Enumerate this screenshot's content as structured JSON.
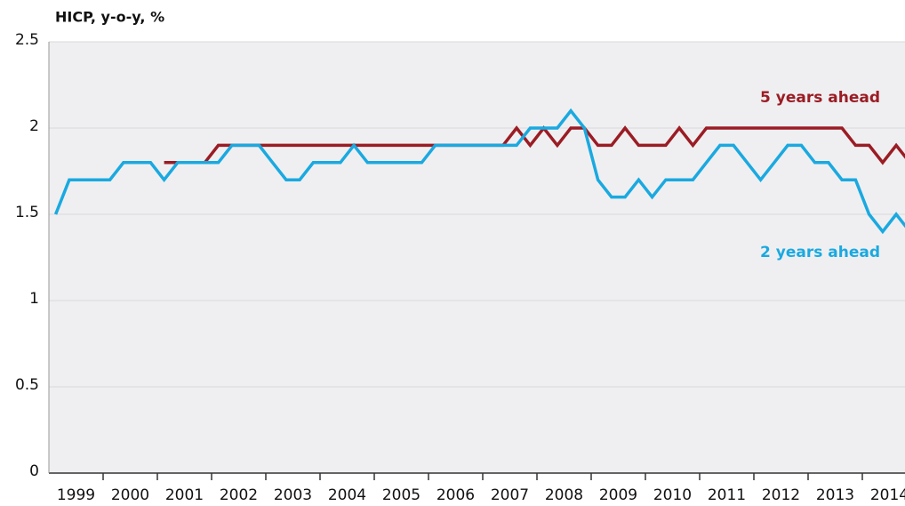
{
  "chart_data": {
    "type": "line",
    "title": "HICP, y-o-y, %",
    "x": [
      1999,
      1999,
      1999,
      1999,
      2000,
      2000,
      2000,
      2000,
      2001,
      2001,
      2001,
      2001,
      2002,
      2002,
      2002,
      2002,
      2003,
      2003,
      2003,
      2003,
      2004,
      2004,
      2004,
      2004,
      2005,
      2005,
      2005,
      2005,
      2006,
      2006,
      2006,
      2006,
      2007,
      2007,
      2007,
      2007,
      2008,
      2008,
      2008,
      2008,
      2009,
      2009,
      2009,
      2009,
      2010,
      2010,
      2010,
      2010,
      2011,
      2011,
      2011,
      2011,
      2012,
      2012,
      2012,
      2012,
      2013,
      2013,
      2013,
      2013,
      2014,
      2014,
      2014,
      2014
    ],
    "series": [
      {
        "name": "5 years ahead",
        "color": "#9b1c24",
        "values": [
          null,
          null,
          null,
          null,
          null,
          null,
          null,
          null,
          1.8,
          1.8,
          1.8,
          1.8,
          1.9,
          1.9,
          1.9,
          1.9,
          1.9,
          1.9,
          1.9,
          1.9,
          1.9,
          1.9,
          1.9,
          1.9,
          1.9,
          1.9,
          1.9,
          1.9,
          1.9,
          1.9,
          1.9,
          1.9,
          1.9,
          1.9,
          2.0,
          1.9,
          2.0,
          1.9,
          2.0,
          2.0,
          1.9,
          1.9,
          2.0,
          1.9,
          1.9,
          1.9,
          2.0,
          1.9,
          2.0,
          2.0,
          2.0,
          2.0,
          2.0,
          2.0,
          2.0,
          2.0,
          2.0,
          2.0,
          2.0,
          1.9,
          1.9,
          1.8,
          1.9,
          1.8
        ]
      },
      {
        "name": "2 years ahead",
        "color": "#1aa9e0",
        "values": [
          1.5,
          1.7,
          1.7,
          1.7,
          1.7,
          1.8,
          1.8,
          1.8,
          1.7,
          1.8,
          1.8,
          1.8,
          1.8,
          1.9,
          1.9,
          1.9,
          1.8,
          1.7,
          1.7,
          1.8,
          1.8,
          1.8,
          1.9,
          1.8,
          1.8,
          1.8,
          1.8,
          1.8,
          1.9,
          1.9,
          1.9,
          1.9,
          1.9,
          1.9,
          1.9,
          2.0,
          2.0,
          2.0,
          2.1,
          2.0,
          1.7,
          1.6,
          1.6,
          1.7,
          1.6,
          1.7,
          1.7,
          1.7,
          1.8,
          1.9,
          1.9,
          1.8,
          1.7,
          1.8,
          1.9,
          1.9,
          1.8,
          1.8,
          1.7,
          1.7,
          1.5,
          1.4,
          1.5,
          1.4
        ]
      }
    ],
    "ylim": [
      0,
      2.5
    ],
    "yticks": [
      0,
      0.5,
      1,
      1.5,
      2,
      2.5
    ],
    "grid": true
  }
}
